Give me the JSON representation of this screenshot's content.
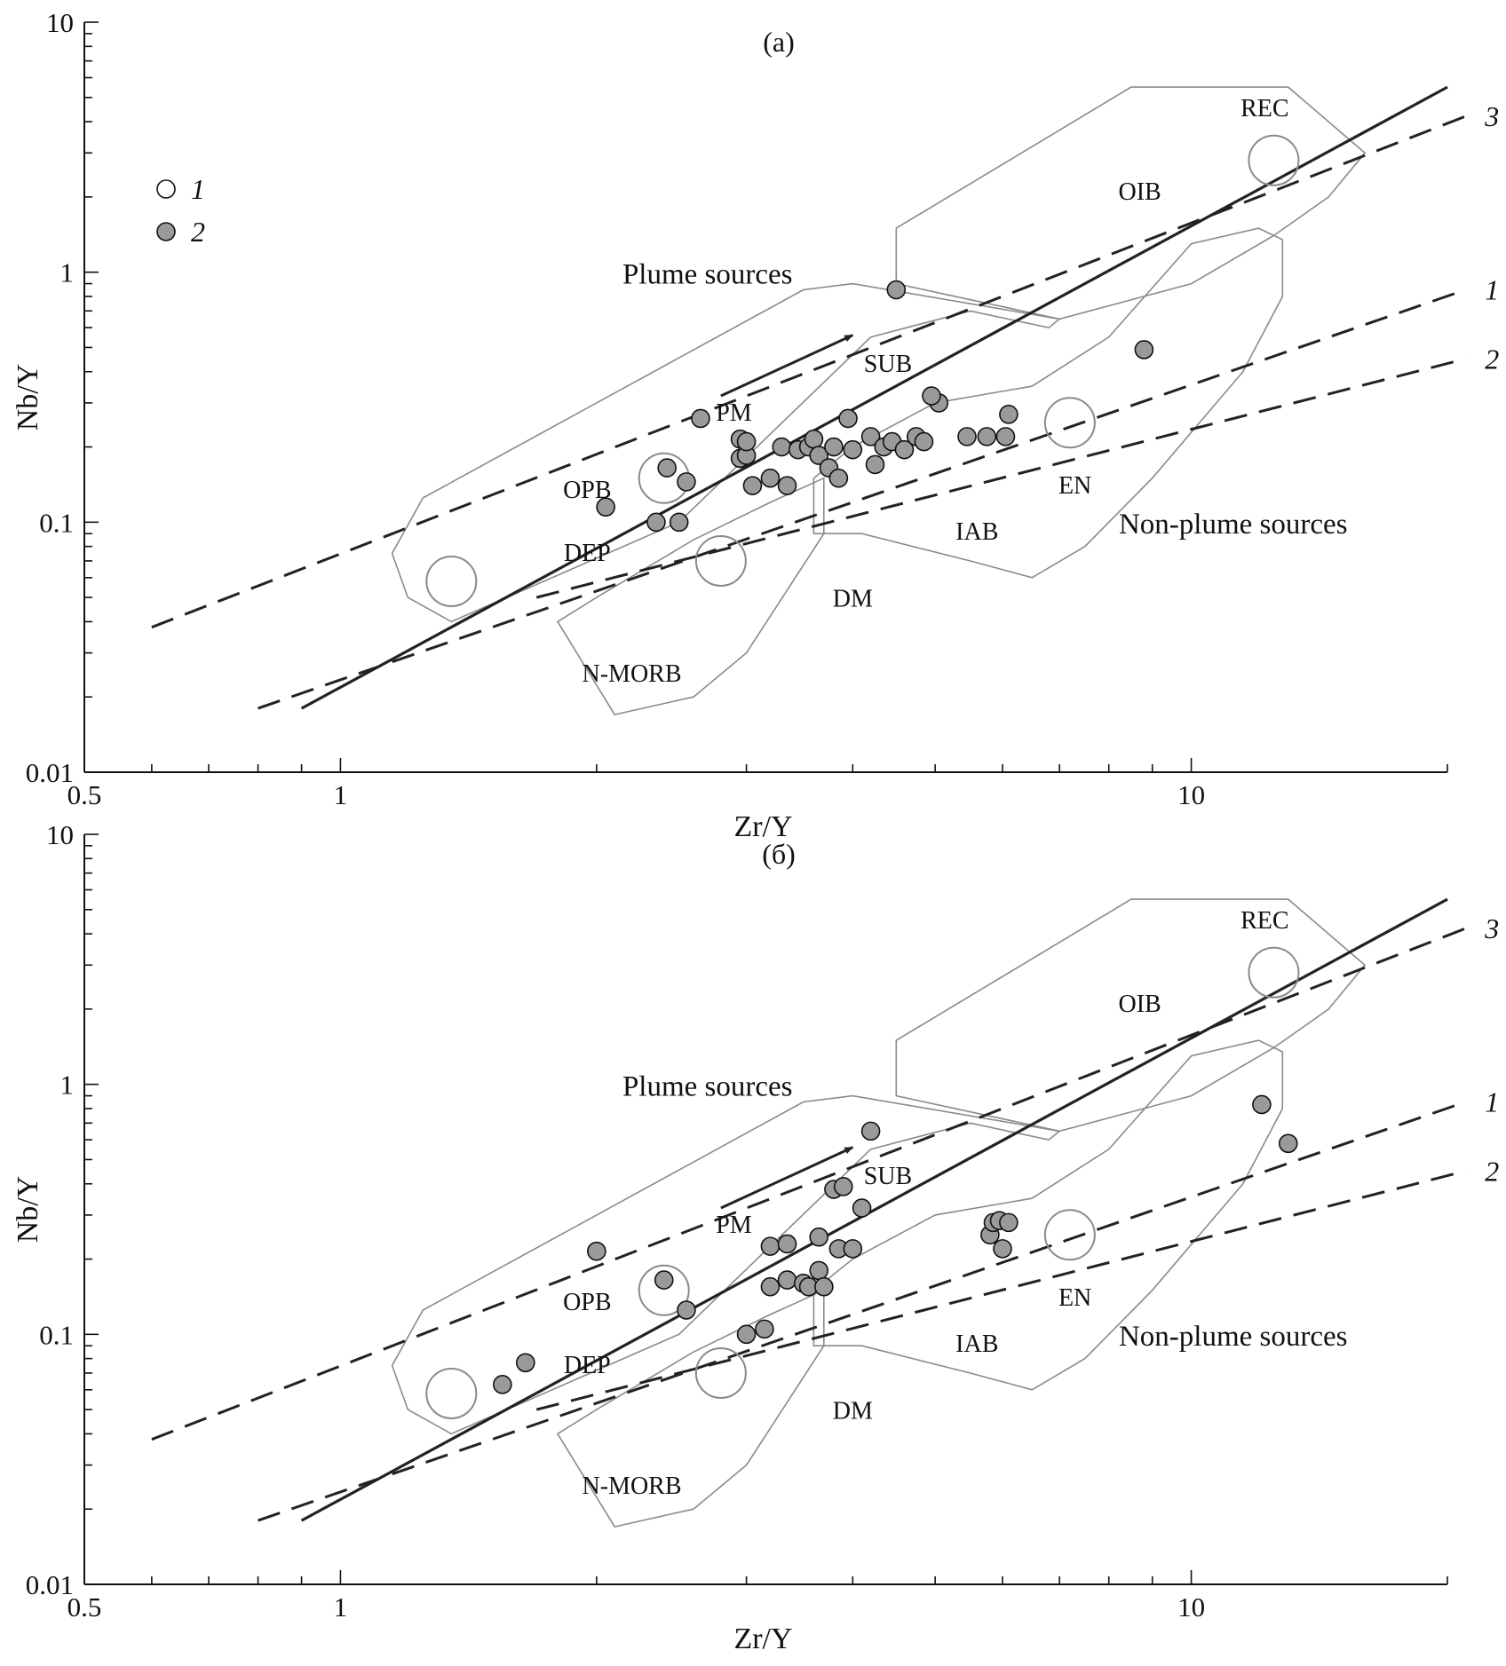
{
  "colors": {
    "background": "#ffffff",
    "axis": "#111111",
    "field_outline": "#8a8a8a",
    "filled_symbol": "#9a9a9a",
    "open_symbol": "#ffffff",
    "line": "#222222"
  },
  "icons": {
    "legend_1": "open-circle-icon",
    "legend_2": "filled-circle-icon"
  },
  "legend": [
    {
      "symbol": "open",
      "label": "1"
    },
    {
      "symbol": "filled",
      "label": "2"
    }
  ],
  "chart_data": [
    {
      "type": "scatter",
      "panel_label": "(a)",
      "xlabel": "Zr/Y",
      "ylabel": "Nb/Y",
      "x_scale": "log",
      "y_scale": "log",
      "xlim": [
        0.5,
        20
      ],
      "ylim": [
        0.01,
        10
      ],
      "x_tick_labels": [
        "0.5",
        "1",
        "10"
      ],
      "y_tick_labels": [
        "0.01",
        "0.1",
        "1",
        "10"
      ],
      "grid": false,
      "show_legend": true,
      "legend_position": "top-left",
      "reference_lines": [
        {
          "label": "3",
          "style": "dashed",
          "points": [
            [
              0.6,
              0.038
            ],
            [
              21,
              4.2
            ]
          ]
        },
        {
          "label": "1",
          "style": "dashed",
          "points": [
            [
              0.8,
              0.018
            ],
            [
              21,
              0.85
            ]
          ]
        },
        {
          "label": "2",
          "style": "dashed",
          "points": [
            [
              1.7,
              0.05
            ],
            [
              21,
              0.45
            ]
          ]
        },
        {
          "label": "",
          "style": "solid",
          "points": [
            [
              0.9,
              0.018
            ],
            [
              20,
              5.5
            ]
          ]
        }
      ],
      "arrow": {
        "from": [
          2.8,
          0.32
        ],
        "to": [
          4,
          0.56
        ]
      },
      "fields": [
        {
          "name": "OIB",
          "points": [
            [
              4.5,
              1.5
            ],
            [
              4.5,
              0.9
            ],
            [
              7,
              0.65
            ],
            [
              10,
              0.9
            ],
            [
              12.5,
              1.4
            ],
            [
              14.5,
              2.0
            ],
            [
              16,
              3.0
            ],
            [
              13,
              5.5
            ],
            [
              8.5,
              5.5
            ]
          ]
        },
        {
          "name": "OPB",
          "points": [
            [
              1.25,
              0.125
            ],
            [
              1.15,
              0.075
            ],
            [
              1.2,
              0.05
            ],
            [
              1.35,
              0.04
            ],
            [
              2.5,
              0.1
            ],
            [
              4.2,
              0.55
            ],
            [
              5.5,
              0.7
            ],
            [
              6.8,
              0.6
            ],
            [
              7,
              0.65
            ],
            [
              4,
              0.9
            ],
            [
              3.5,
              0.85
            ]
          ]
        },
        {
          "name": "IAB",
          "points": [
            [
              3.6,
              0.09
            ],
            [
              3.6,
              0.15
            ],
            [
              4,
              0.2
            ],
            [
              5,
              0.3
            ],
            [
              6.5,
              0.35
            ],
            [
              8,
              0.55
            ],
            [
              10,
              1.3
            ],
            [
              12,
              1.5
            ],
            [
              12.8,
              1.35
            ],
            [
              12.8,
              0.8
            ],
            [
              11.5,
              0.4
            ],
            [
              9,
              0.15
            ],
            [
              7.5,
              0.08
            ],
            [
              6.5,
              0.06
            ],
            [
              5.5,
              0.07
            ],
            [
              4.1,
              0.09
            ]
          ]
        },
        {
          "name": "N-MORB",
          "points": [
            [
              1.8,
              0.04
            ],
            [
              2.1,
              0.017
            ],
            [
              2.6,
              0.02
            ],
            [
              3,
              0.03
            ],
            [
              3.7,
              0.09
            ],
            [
              3.7,
              0.15
            ],
            [
              3.2,
              0.12
            ],
            [
              2.6,
              0.085
            ],
            [
              2,
              0.05
            ]
          ]
        }
      ],
      "reservoirs": [
        {
          "name": "REC",
          "x": 12.5,
          "y": 2.8,
          "label_x": 12.2,
          "label_y": 4.2
        },
        {
          "name": "PM",
          "x": 2.4,
          "y": 0.15,
          "label_x": 2.9,
          "label_y": 0.255
        },
        {
          "name": "DEP",
          "x": 1.35,
          "y": 0.058,
          "label_x": 1.95,
          "label_y": 0.07
        },
        {
          "name": "DM",
          "x": 2.8,
          "y": 0.07,
          "label_x": 4.0,
          "label_y": 0.046
        },
        {
          "name": "EN",
          "x": 7.2,
          "y": 0.25,
          "label_x": 7.3,
          "label_y": 0.13
        }
      ],
      "labels": [
        {
          "text": "OIB",
          "x": 8.7,
          "y": 1.95
        },
        {
          "text": "SUB",
          "x": 4.4,
          "y": 0.4
        },
        {
          "text": "OPB",
          "x": 1.95,
          "y": 0.125
        },
        {
          "text": "IAB",
          "x": 5.6,
          "y": 0.085
        },
        {
          "text": "N-MORB",
          "x": 2.2,
          "y": 0.023
        },
        {
          "text": "Plume sources",
          "x": 2.7,
          "y": 0.9
        },
        {
          "text": "Non-plume sources",
          "x": 11.2,
          "y": 0.09
        }
      ],
      "series": [
        {
          "symbol": "filled",
          "x": [
            2.05,
            2.35,
            2.42,
            2.5,
            2.55,
            2.65,
            2.95,
            2.95,
            3.0,
            3.0,
            3.05,
            3.2,
            3.3,
            3.35,
            3.45,
            3.55,
            3.6,
            3.65,
            3.75,
            3.8,
            3.85,
            3.95,
            4.0,
            4.2,
            4.25,
            4.35,
            4.45,
            4.6,
            4.75,
            4.85,
            5.05,
            5.45,
            5.75,
            6.05,
            6.1,
            4.5,
            4.95,
            8.8
          ],
          "y": [
            0.115,
            0.1,
            0.165,
            0.1,
            0.145,
            0.26,
            0.18,
            0.215,
            0.185,
            0.21,
            0.14,
            0.15,
            0.2,
            0.14,
            0.195,
            0.2,
            0.215,
            0.185,
            0.165,
            0.2,
            0.15,
            0.26,
            0.195,
            0.22,
            0.17,
            0.2,
            0.21,
            0.195,
            0.22,
            0.21,
            0.3,
            0.22,
            0.22,
            0.22,
            0.27,
            0.85,
            0.32,
            0.49
          ]
        }
      ]
    },
    {
      "type": "scatter",
      "panel_label": "(б)",
      "xlabel": "Zr/Y",
      "ylabel": "Nb/Y",
      "x_scale": "log",
      "y_scale": "log",
      "xlim": [
        0.5,
        20
      ],
      "ylim": [
        0.01,
        10
      ],
      "x_tick_labels": [
        "0.5",
        "1",
        "10"
      ],
      "y_tick_labels": [
        "0.01",
        "0.1",
        "1",
        "10"
      ],
      "grid": false,
      "show_legend": false,
      "reference_lines": [
        {
          "label": "3",
          "style": "dashed",
          "points": [
            [
              0.6,
              0.038
            ],
            [
              21,
              4.2
            ]
          ]
        },
        {
          "label": "1",
          "style": "dashed",
          "points": [
            [
              0.8,
              0.018
            ],
            [
              21,
              0.85
            ]
          ]
        },
        {
          "label": "2",
          "style": "dashed",
          "points": [
            [
              1.7,
              0.05
            ],
            [
              21,
              0.45
            ]
          ]
        },
        {
          "label": "",
          "style": "solid",
          "points": [
            [
              0.9,
              0.018
            ],
            [
              20,
              5.5
            ]
          ]
        }
      ],
      "arrow": {
        "from": [
          2.8,
          0.32
        ],
        "to": [
          4,
          0.56
        ]
      },
      "fields": [
        {
          "name": "OIB",
          "points": [
            [
              4.5,
              1.5
            ],
            [
              4.5,
              0.9
            ],
            [
              7,
              0.65
            ],
            [
              10,
              0.9
            ],
            [
              12.5,
              1.4
            ],
            [
              14.5,
              2.0
            ],
            [
              16,
              3.0
            ],
            [
              13,
              5.5
            ],
            [
              8.5,
              5.5
            ]
          ]
        },
        {
          "name": "OPB",
          "points": [
            [
              1.25,
              0.125
            ],
            [
              1.15,
              0.075
            ],
            [
              1.2,
              0.05
            ],
            [
              1.35,
              0.04
            ],
            [
              2.5,
              0.1
            ],
            [
              4.2,
              0.55
            ],
            [
              5.5,
              0.7
            ],
            [
              6.8,
              0.6
            ],
            [
              7,
              0.65
            ],
            [
              4,
              0.9
            ],
            [
              3.5,
              0.85
            ]
          ]
        },
        {
          "name": "IAB",
          "points": [
            [
              3.6,
              0.09
            ],
            [
              3.6,
              0.15
            ],
            [
              4,
              0.2
            ],
            [
              5,
              0.3
            ],
            [
              6.5,
              0.35
            ],
            [
              8,
              0.55
            ],
            [
              10,
              1.3
            ],
            [
              12,
              1.5
            ],
            [
              12.8,
              1.35
            ],
            [
              12.8,
              0.8
            ],
            [
              11.5,
              0.4
            ],
            [
              9,
              0.15
            ],
            [
              7.5,
              0.08
            ],
            [
              6.5,
              0.06
            ],
            [
              5.5,
              0.07
            ],
            [
              4.1,
              0.09
            ]
          ]
        },
        {
          "name": "N-MORB",
          "points": [
            [
              1.8,
              0.04
            ],
            [
              2.1,
              0.017
            ],
            [
              2.6,
              0.02
            ],
            [
              3,
              0.03
            ],
            [
              3.7,
              0.09
            ],
            [
              3.7,
              0.15
            ],
            [
              3.2,
              0.12
            ],
            [
              2.6,
              0.085
            ],
            [
              2,
              0.05
            ]
          ]
        }
      ],
      "reservoirs": [
        {
          "name": "REC",
          "x": 12.5,
          "y": 2.8,
          "label_x": 12.2,
          "label_y": 4.2
        },
        {
          "name": "PM",
          "x": 2.4,
          "y": 0.15,
          "label_x": 2.9,
          "label_y": 0.255
        },
        {
          "name": "DEP",
          "x": 1.35,
          "y": 0.058,
          "label_x": 1.95,
          "label_y": 0.07
        },
        {
          "name": "DM",
          "x": 2.8,
          "y": 0.07,
          "label_x": 4.0,
          "label_y": 0.046
        },
        {
          "name": "EN",
          "x": 7.2,
          "y": 0.25,
          "label_x": 7.3,
          "label_y": 0.13
        }
      ],
      "labels": [
        {
          "text": "OIB",
          "x": 8.7,
          "y": 1.95
        },
        {
          "text": "SUB",
          "x": 4.4,
          "y": 0.4
        },
        {
          "text": "OPB",
          "x": 1.95,
          "y": 0.125
        },
        {
          "text": "IAB",
          "x": 5.6,
          "y": 0.085
        },
        {
          "text": "N-MORB",
          "x": 2.2,
          "y": 0.023
        },
        {
          "text": "Plume sources",
          "x": 2.7,
          "y": 0.9
        },
        {
          "text": "Non-plume sources",
          "x": 11.2,
          "y": 0.09
        }
      ],
      "series": [
        {
          "symbol": "filled",
          "x": [
            1.55,
            1.65,
            2.0,
            2.4,
            2.55,
            3.0,
            3.15,
            3.2,
            3.2,
            3.35,
            3.35,
            3.5,
            3.55,
            3.65,
            3.65,
            3.7,
            3.8,
            3.85,
            3.9,
            4.0,
            4.1,
            4.2,
            5.8,
            5.85,
            5.95,
            6.0,
            6.1,
            12.1,
            13.0
          ],
          "y": [
            0.063,
            0.077,
            0.215,
            0.165,
            0.125,
            0.1,
            0.105,
            0.155,
            0.225,
            0.165,
            0.23,
            0.16,
            0.155,
            0.18,
            0.245,
            0.155,
            0.38,
            0.22,
            0.39,
            0.22,
            0.32,
            0.65,
            0.25,
            0.28,
            0.285,
            0.22,
            0.28,
            0.83,
            0.58
          ]
        }
      ]
    }
  ]
}
